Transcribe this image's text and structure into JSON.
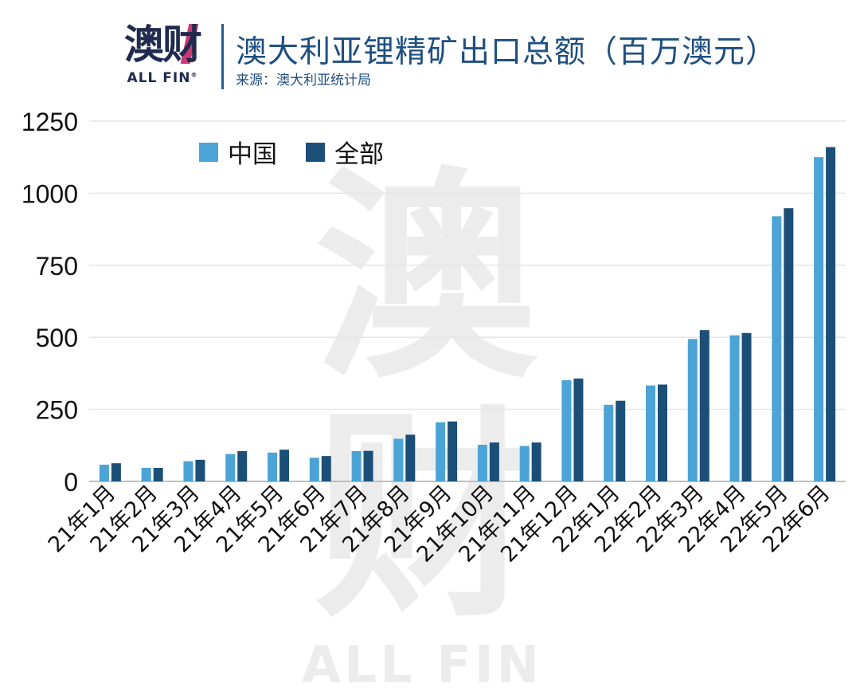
{
  "header": {
    "logo_cn": "澳财",
    "logo_en": "ALL FIN",
    "logo_mark": "®",
    "title": "澳大利亚锂精矿出口总额（百万澳元）",
    "source": "来源：澳大利亚统计局"
  },
  "watermark": {
    "cn": "澳财",
    "en": "ALL FIN"
  },
  "colors": {
    "china": "#4ba3d6",
    "all": "#1c4f77",
    "grid": "#e6e6e6",
    "axis": "#bfbfbf",
    "title": "#1f4f80"
  },
  "chart_data": {
    "type": "bar",
    "title": "澳大利亚锂精矿出口总额（百万澳元）",
    "categories": [
      "21年1月",
      "21年2月",
      "21年3月",
      "21年4月",
      "21年5月",
      "21年6月",
      "21年7月",
      "21年8月",
      "21年9月",
      "21年10月",
      "21年11月",
      "21年12月",
      "22年1月",
      "22年2月",
      "22年3月",
      "22年4月",
      "22年5月",
      "22年6月"
    ],
    "series": [
      {
        "name": "中国",
        "values": [
          58,
          47,
          70,
          95,
          100,
          82,
          105,
          148,
          205,
          127,
          123,
          351,
          266,
          333,
          494,
          507,
          920,
          1125
        ]
      },
      {
        "name": "全部",
        "values": [
          63,
          47,
          75,
          105,
          110,
          88,
          106,
          162,
          208,
          135,
          135,
          357,
          280,
          336,
          525,
          515,
          948,
          1160
        ]
      }
    ],
    "yticks": [
      "0",
      "250",
      "500",
      "750",
      "1000",
      "1250"
    ],
    "ylim": [
      0,
      1250
    ],
    "grid": true,
    "legend_position": "top-left"
  }
}
